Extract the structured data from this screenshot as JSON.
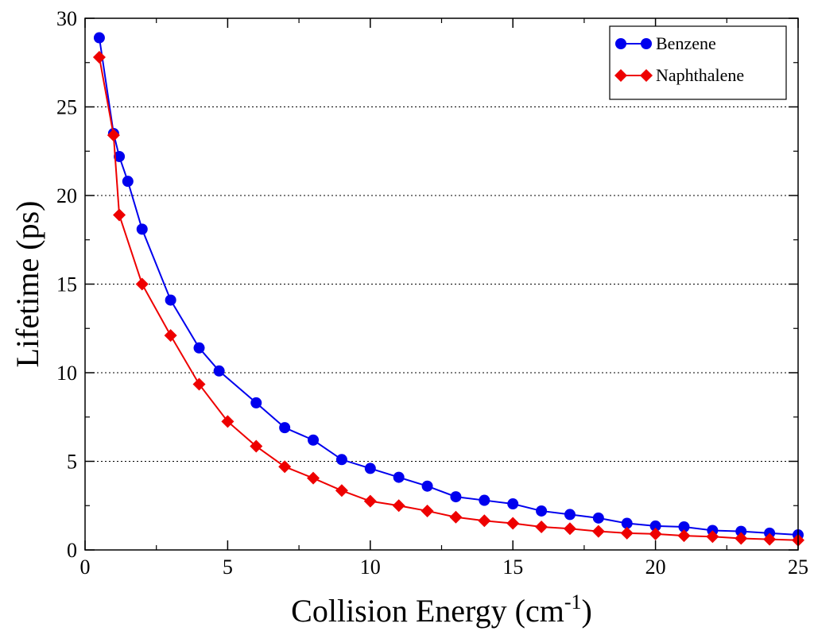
{
  "chart_data": {
    "type": "line",
    "xlabel": "Collision Energy (cm",
    "xlabel_superscript": "-1",
    "xlabel_suffix": ")",
    "ylabel": "Lifetime (ps)",
    "xlim": [
      0,
      25
    ],
    "ylim": [
      0,
      30
    ],
    "xticks": [
      "0",
      "5",
      "10",
      "15",
      "20",
      "25"
    ],
    "yticks": [
      "0",
      "5",
      "10",
      "15",
      "20",
      "25",
      "30"
    ],
    "grid": "horizontal dotted",
    "legend_position": "top-right",
    "series": [
      {
        "name": "Benzene",
        "color": "#0000ee",
        "marker": "circle",
        "x": [
          0.5,
          1,
          1.2,
          1.5,
          2,
          3,
          4,
          4.7,
          6,
          7,
          8,
          9,
          10,
          11,
          12,
          13,
          14,
          15,
          16,
          17,
          18,
          19,
          20,
          21,
          22,
          23,
          24,
          25
        ],
        "y": [
          28.9,
          23.5,
          22.2,
          20.8,
          18.1,
          14.1,
          11.4,
          10.1,
          8.3,
          6.9,
          6.2,
          5.1,
          4.6,
          4.1,
          3.6,
          3.0,
          2.8,
          2.6,
          2.2,
          2.0,
          1.8,
          1.5,
          1.35,
          1.3,
          1.1,
          1.05,
          0.95,
          0.85
        ]
      },
      {
        "name": "Naphthalene",
        "color": "#ee0000",
        "marker": "diamond",
        "x": [
          0.5,
          1,
          1.2,
          2,
          3,
          4,
          5,
          6,
          7,
          8,
          9,
          10,
          11,
          12,
          13,
          14,
          15,
          16,
          17,
          18,
          19,
          20,
          21,
          22,
          23,
          24,
          25
        ],
        "y": [
          27.8,
          23.4,
          18.9,
          15.0,
          12.1,
          9.35,
          7.25,
          5.85,
          4.7,
          4.05,
          3.35,
          2.75,
          2.5,
          2.2,
          1.85,
          1.65,
          1.5,
          1.3,
          1.2,
          1.05,
          0.95,
          0.9,
          0.8,
          0.75,
          0.65,
          0.6,
          0.55
        ]
      }
    ]
  }
}
